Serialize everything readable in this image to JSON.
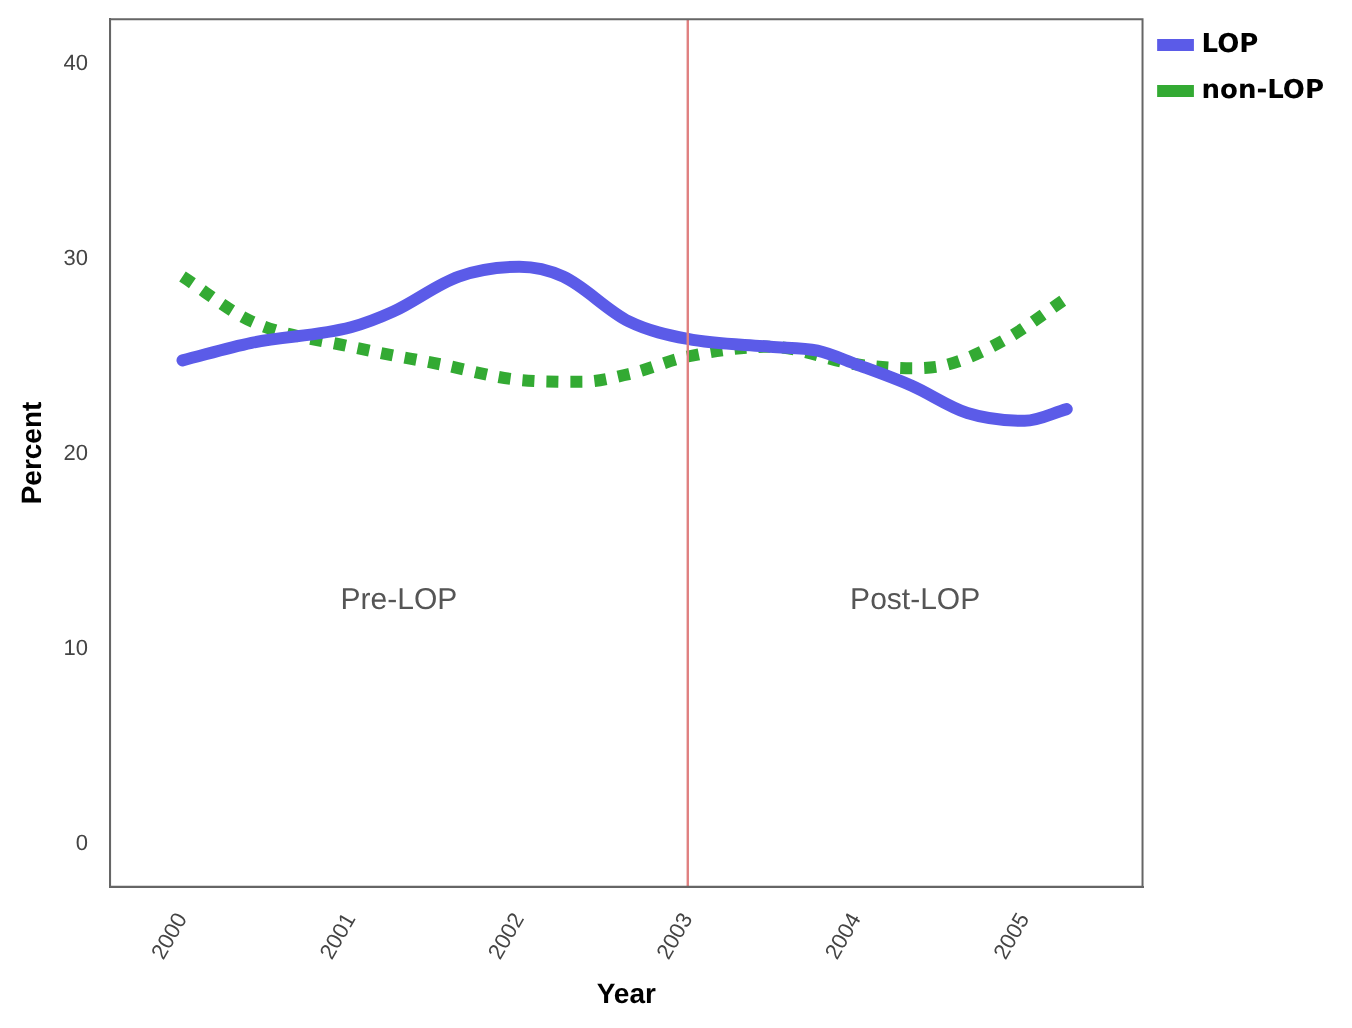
{
  "chart_data": {
    "type": "line",
    "xlabel": "Year",
    "ylabel": "Percent",
    "xlim": [
      1999.57,
      2005.7
    ],
    "xticks": [
      2000,
      2001,
      2002,
      2003,
      2004,
      2005
    ],
    "ylim": [
      -2.2,
      42.3
    ],
    "yticks": [
      0,
      10,
      20,
      30,
      40
    ],
    "grid": false,
    "legend": "top right",
    "marker": "none",
    "series": [
      {
        "name": "LOP",
        "color": "#5b5be8",
        "line_style": "solid",
        "x": [
          2000,
          2000.41,
          2001,
          2001.25,
          2001.64,
          2002,
          2002.26,
          2002.65,
          2003,
          2003.49,
          2003.77,
          2004,
          2004.33,
          2004.66,
          2005,
          2005.25
        ],
        "values": [
          24.8,
          25.7,
          26.5,
          27.3,
          29.1,
          29.6,
          29.1,
          26.8,
          25.9,
          25.5,
          25.3,
          24.6,
          23.5,
          22.1,
          21.7,
          22.3
        ]
      },
      {
        "name": "non-LOP",
        "color": "#33aa33",
        "line_style": "dotted",
        "x": [
          2000,
          2000.41,
          2001,
          2001.53,
          2002,
          2002.37,
          2002.65,
          2003,
          2003.49,
          2004,
          2004.33,
          2004.55,
          2004.89,
          2005.25
        ],
        "values": [
          29.1,
          26.8,
          25.5,
          24.6,
          23.8,
          23.7,
          24.1,
          25.0,
          25.5,
          24.6,
          24.4,
          24.6,
          25.9,
          28.0
        ]
      }
    ],
    "ref_lines": [
      {
        "axis": "x",
        "value": 2003,
        "color": "#e08080"
      }
    ],
    "annotations": [
      "Pre-LOP",
      "Post-LOP"
    ]
  }
}
